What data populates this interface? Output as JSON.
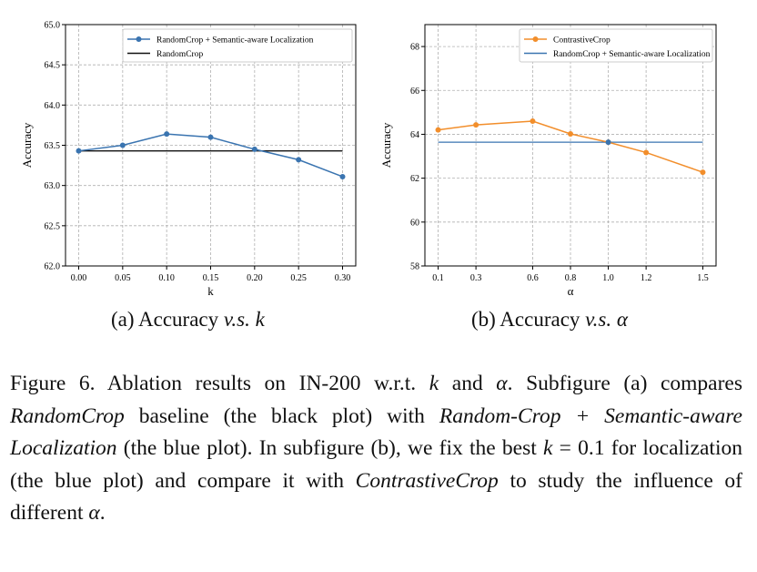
{
  "chart_data": [
    {
      "type": "line",
      "xlabel": "k",
      "ylabel": "Accuracy",
      "ylim": [
        62.0,
        65.0
      ],
      "xlim": [
        -0.015,
        0.315
      ],
      "x": [
        0.0,
        0.05,
        0.1,
        0.15,
        0.2,
        0.25,
        0.3
      ],
      "xticks": [
        "0.00",
        "0.05",
        "0.10",
        "0.15",
        "0.20",
        "0.25",
        "0.30"
      ],
      "yticks": [
        "62.0",
        "62.5",
        "63.0",
        "63.5",
        "64.0",
        "64.5",
        "65.0"
      ],
      "grid": true,
      "legend": "top-right",
      "series": [
        {
          "name": "RandomCrop + Semantic-aware Localization",
          "color": "#3a74b0",
          "marker": true,
          "values": [
            63.43,
            63.5,
            63.64,
            63.6,
            63.45,
            63.32,
            63.11
          ]
        },
        {
          "name": "RandomCrop",
          "color": "#111111",
          "marker": false,
          "values": [
            63.43,
            63.43,
            63.43,
            63.43,
            63.43,
            63.43,
            63.43
          ]
        }
      ]
    },
    {
      "type": "line",
      "xlabel": "α",
      "ylabel": "Accuracy",
      "ylim": [
        58,
        69
      ],
      "xlim": [
        0.03,
        1.57
      ],
      "x": [
        0.1,
        0.3,
        0.6,
        0.8,
        1.0,
        1.2,
        1.5
      ],
      "xticks": [
        "0.1",
        "0.3",
        "0.6",
        "0.8",
        "1.0",
        "1.2",
        "1.5"
      ],
      "yticks": [
        "58",
        "60",
        "62",
        "64",
        "66",
        "68"
      ],
      "grid": true,
      "legend": "top-right",
      "series": [
        {
          "name": "ContrastiveCrop",
          "color": "#f28e2b",
          "marker": true,
          "values": [
            64.2,
            64.43,
            64.6,
            64.02,
            63.64,
            63.17,
            62.27
          ]
        },
        {
          "name": "RandomCrop + Semantic-aware Localization",
          "color": "#3a74b0",
          "marker": false,
          "values": [
            63.64,
            63.64,
            63.64,
            63.64,
            63.64,
            63.64,
            63.64
          ],
          "point": {
            "x": 1.0,
            "y": 63.64
          }
        }
      ]
    }
  ],
  "subcaptions": {
    "a_prefix": "(a) Accuracy ",
    "a_vs": "v.s.",
    "a_var": "k",
    "b_prefix": "(b) Accuracy ",
    "b_vs": "v.s.",
    "b_var": "α"
  },
  "caption": {
    "t1": "Figure 6.  Ablation results on IN-200 w.r.t. ",
    "k1": "k",
    "t2": " and ",
    "a1": "α",
    "t3": ". Subfigure (a) compares ",
    "i1": "RandomCrop",
    "t4": " baseline (the black plot) with ",
    "i2": "Random-Crop + Semantic-aware Localization",
    "t5": " (the blue plot). In subfigure (b), we fix the best ",
    "k2": "k",
    "t6": " = 0.1 for localization (the blue plot) and compare it with ",
    "i3": "ContrastiveCrop",
    "t7": " to study the influence of different ",
    "a2": "α",
    "t8": "."
  }
}
